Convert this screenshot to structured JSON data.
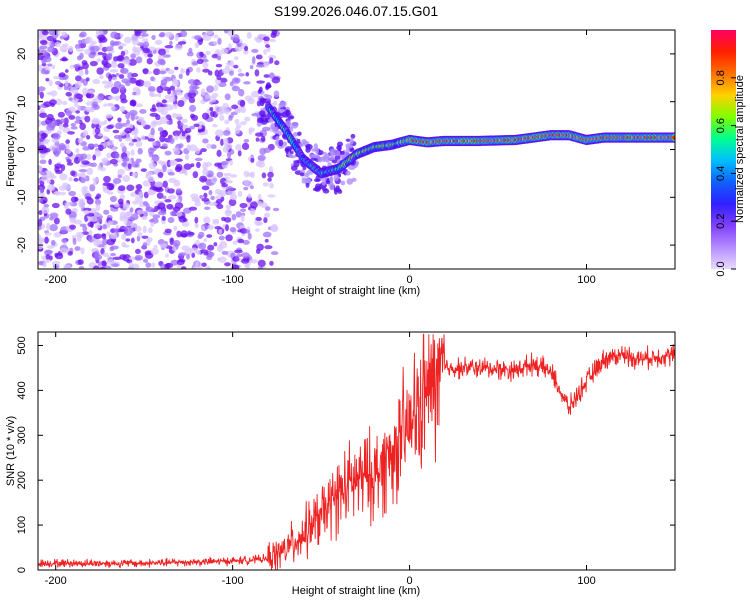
{
  "title": "S199.2026.046.07.15.G01",
  "colors": {
    "snr_line": "#ee2222",
    "scatter": "#7a1aff",
    "colorbar_stops": [
      "#e8dcff",
      "#b48cff",
      "#8040ff",
      "#3020ff",
      "#1060ff",
      "#00c0ff",
      "#00ff90",
      "#80ff00",
      "#ffd000",
      "#ff7000",
      "#ff2000",
      "#ff0060"
    ]
  },
  "chart_data": [
    {
      "type": "heatmap",
      "name": "spectrogram",
      "xlabel": "Height of straight line (km)",
      "ylabel": "Frequency (Hz)",
      "xlim": [
        -210,
        150
      ],
      "ylim": [
        -25,
        25
      ],
      "xticks": [
        -200,
        -100,
        0,
        100
      ],
      "xtick_labels": [
        "-200",
        "-100",
        "0",
        "100"
      ],
      "yticks": [
        20,
        10,
        0,
        -10,
        -20
      ],
      "ytick_labels": [
        "20",
        "10",
        "0",
        "-10",
        "-20"
      ],
      "colorbar": {
        "label": "Normalized spectral amplitude",
        "range": [
          0,
          1
        ],
        "ticks": [
          0.0,
          0.2,
          0.4,
          0.6,
          0.8
        ],
        "tick_labels": [
          "0.0",
          "0.2",
          "0.4",
          "0.6",
          "0.8"
        ]
      },
      "ridge": {
        "x": [
          -80,
          -70,
          -60,
          -50,
          -40,
          -30,
          -20,
          -10,
          0,
          10,
          20,
          40,
          60,
          80,
          90,
          100,
          110,
          130,
          150
        ],
        "frequency": [
          9,
          4,
          -2,
          -5,
          -4,
          -1,
          0.5,
          1,
          2,
          1.5,
          1.8,
          1.8,
          2,
          3,
          3,
          2,
          2.5,
          2.5,
          2.5
        ]
      }
    },
    {
      "type": "line",
      "name": "snr",
      "xlabel": "Height of straight line (km)",
      "ylabel": "SNR (10 * v/v)",
      "xlim": [
        -210,
        150
      ],
      "ylim": [
        0,
        530
      ],
      "xticks": [
        -200,
        -100,
        0,
        100
      ],
      "xtick_labels": [
        "-200",
        "-100",
        "0",
        "100"
      ],
      "yticks": [
        0,
        100,
        200,
        300,
        400,
        500
      ],
      "ytick_labels": [
        "0",
        "100",
        "200",
        "300",
        "400",
        "500"
      ],
      "series": [
        {
          "name": "SNR",
          "x": [
            -210,
            -150,
            -100,
            -80,
            -70,
            -60,
            -50,
            -40,
            -30,
            -20,
            -10,
            0,
            10,
            20,
            40,
            60,
            70,
            80,
            90,
            100,
            110,
            120,
            130,
            150
          ],
          "y": [
            15,
            15,
            20,
            25,
            45,
            80,
            120,
            170,
            200,
            210,
            260,
            320,
            400,
            450,
            450,
            445,
            460,
            440,
            360,
            420,
            470,
            480,
            470,
            480
          ]
        }
      ]
    }
  ]
}
